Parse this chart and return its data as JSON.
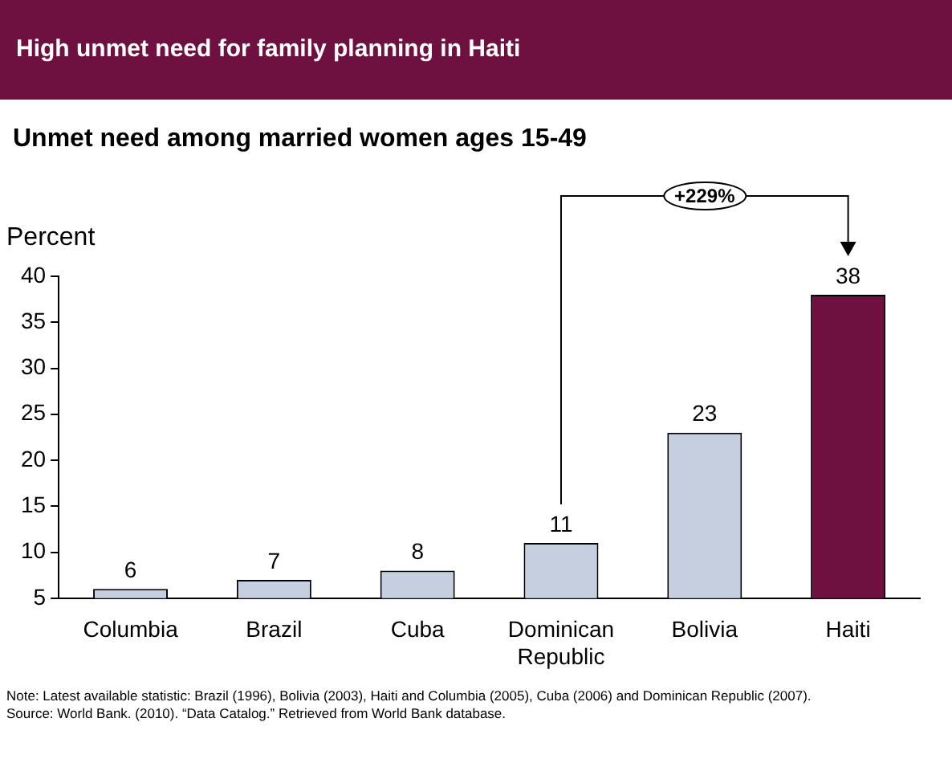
{
  "chart_data": {
    "type": "bar",
    "title": "High unmet need for family planning in Haiti",
    "subtitle": "Unmet need among married women ages 15-49",
    "ylabel": "Percent",
    "categories": [
      "Columbia",
      "Brazil",
      "Cuba",
      "Dominican Republic",
      "Bolivia",
      "Haiti"
    ],
    "values": [
      6,
      7,
      8,
      11,
      23,
      38
    ],
    "colors": [
      "#c5cfe0",
      "#c5cfe0",
      "#c5cfe0",
      "#c5cfe0",
      "#c5cfe0",
      "#6e1040"
    ],
    "ylim": [
      5,
      40
    ],
    "yticks": [
      5,
      10,
      15,
      20,
      25,
      30,
      35,
      40
    ],
    "grid": false,
    "legend": false,
    "data_labels": true,
    "annotations": [
      "+229%",
      "Note: Latest available statistic: Brazil (1996), Bolivia (2003), Haiti and Columbia (2005), Cuba (2006) and Dominican Republic (2007).",
      "Source: World Bank. (2010). “Data Catalog.” Retrieved from World Bank database."
    ]
  }
}
